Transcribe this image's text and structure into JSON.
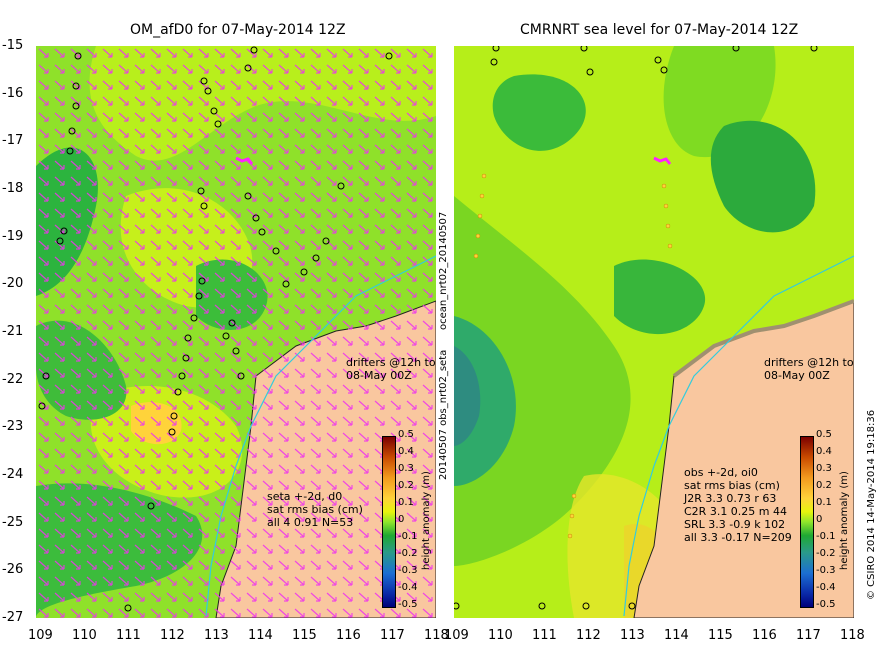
{
  "left_panel": {
    "title": "OM_afD0 for 07-May-2014 12Z",
    "note_lines": [
      "seta +-2d, d0",
      "sat rms bias (cm)",
      "all 4 0.91 N=53"
    ],
    "drifters_line1": "drifters @12h to",
    "drifters_line2": "08-May 00Z"
  },
  "right_panel": {
    "title": "CMRNRT sea level  for 07-May-2014 12Z",
    "note_lines": [
      "obs +-2d, oi0",
      "sat rms bias (cm)",
      "J2R   3.3 0.73 r 63",
      "C2R   3.1 0.25 m 44",
      "SRL   3.3 -0.9 k 102",
      "all   3.3 -0.17 N=209"
    ],
    "drifters_line1": "drifters @12h to",
    "drifters_line2": "08-May 00Z",
    "side_label": "20140507 obs_nrt02_seta",
    "side_label_top": "ocean_nrt02_20140507",
    "credit": "© CSIRO 2014  14-May-2014 19:18:36"
  },
  "axes": {
    "y_ticks": [
      "-15",
      "-16",
      "-17",
      "-18",
      "-19",
      "-20",
      "-21",
      "-22",
      "-23",
      "-24",
      "-25",
      "-26",
      "-27"
    ],
    "x_ticks_left": [
      "109",
      "110",
      "111",
      "112",
      "113",
      "114",
      "115",
      "116",
      "117",
      "118"
    ],
    "x_ticks_right": [
      "109",
      "110",
      "111",
      "112",
      "113",
      "114",
      "115",
      "116",
      "117",
      "118"
    ],
    "xlim": [
      109,
      118
    ],
    "ylim": [
      -27,
      -15
    ]
  },
  "colorbar": {
    "label": "height anomaly (m)",
    "ticks": [
      "0.5",
      "0.4",
      "0.3",
      "0.2",
      "0.1",
      "0",
      "-0.1",
      "-0.2",
      "-0.3",
      "-0.4",
      "-0.5"
    ]
  },
  "colors": {
    "land": "#f9c79f",
    "sea_high": "#b4ef1a",
    "sea_mid": "#7fdc1e",
    "sea_low": "#27b03c",
    "drift_arrow": "#ff22ff"
  }
}
